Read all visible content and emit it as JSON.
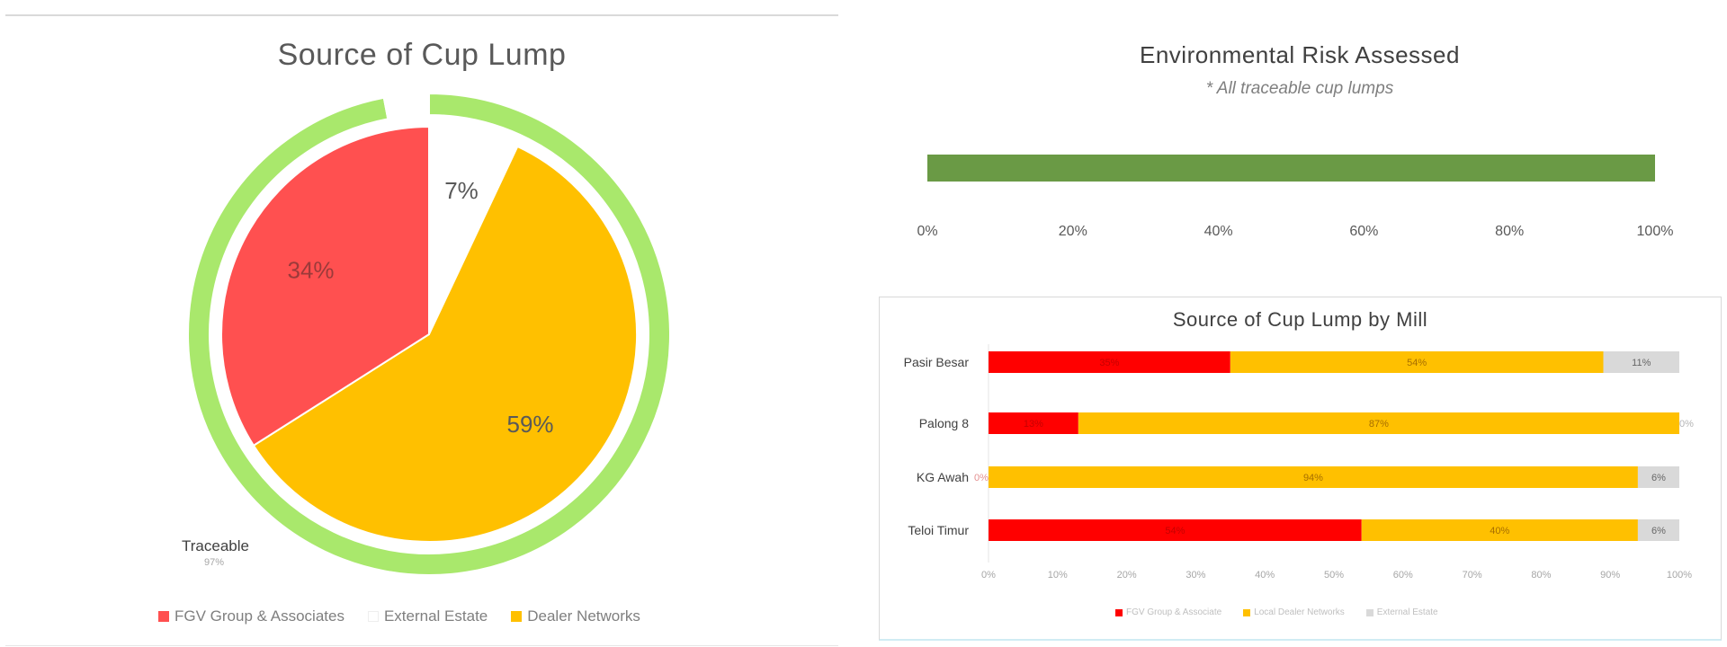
{
  "charts": {
    "source": {
      "title": "Source of Cup Lump",
      "legend": [
        "FGV Group & Associates",
        "External Estate",
        "Dealer Networks"
      ],
      "colors": {
        "fgv": "#FF5050",
        "external": "#FFFFFF",
        "dealer": "#FFC000",
        "traceable": "#A9E86C"
      }
    },
    "environmental": {
      "title": "Environmental Risk Assessed",
      "subtitle": "* All traceable cup lumps",
      "bar_color": "#6A9A45"
    },
    "by_mill": {
      "title": "Source of Cup Lump by Mill",
      "legend": [
        "FGV Group & Associate",
        "Local Dealer Networks",
        "External Estate"
      ],
      "colors": {
        "fgv": "#FF0000",
        "dealer": "#FFC000",
        "external": "#D9D9D9"
      }
    }
  },
  "chart_data": [
    {
      "type": "pie",
      "title": "Source of Cup Lump",
      "slices": [
        {
          "label": "External Estate",
          "value": 7,
          "display": "7%"
        },
        {
          "label": "Dealer Networks",
          "value": 59,
          "display": "59%"
        },
        {
          "label": "FGV Group & Associates",
          "value": 34,
          "display": "34%"
        }
      ],
      "outer_ring": [
        {
          "label": "Traceable",
          "value": 97,
          "display": "97%"
        },
        {
          "label": "",
          "value": 3
        }
      ],
      "legend": [
        "FGV Group & Associates",
        "External Estate",
        "Dealer Networks"
      ],
      "legend_position": "bottom"
    },
    {
      "type": "bar",
      "orientation": "horizontal",
      "title": "Environmental Risk Assessed",
      "subtitle": "* All traceable cup lumps",
      "values": [
        100
      ],
      "xlim": [
        0,
        100
      ],
      "ticks": [
        "0%",
        "20%",
        "40%",
        "60%",
        "80%",
        "100%"
      ]
    },
    {
      "type": "bar",
      "orientation": "horizontal",
      "stacked": true,
      "title": "Source of Cup Lump by Mill",
      "categories": [
        "Pasir Besar",
        "Palong 8",
        "KG Awah",
        "Teloi Timur"
      ],
      "series": [
        {
          "name": "FGV Group & Associate",
          "values": [
            35,
            13,
            0,
            54
          ],
          "labels": [
            "35%",
            "13%",
            "0%",
            "54%"
          ]
        },
        {
          "name": "Local Dealer Networks",
          "values": [
            54,
            87,
            94,
            40
          ],
          "labels": [
            "54%",
            "87%",
            "94%",
            "40%"
          ]
        },
        {
          "name": "External Estate",
          "values": [
            11,
            0,
            6,
            6
          ],
          "labels": [
            "11%",
            "0%",
            "6%",
            "6%"
          ]
        }
      ],
      "xlim": [
        0,
        100
      ],
      "ticks": [
        "0%",
        "10%",
        "20%",
        "30%",
        "40%",
        "50%",
        "60%",
        "70%",
        "80%",
        "90%",
        "100%"
      ],
      "legend_position": "bottom"
    }
  ]
}
